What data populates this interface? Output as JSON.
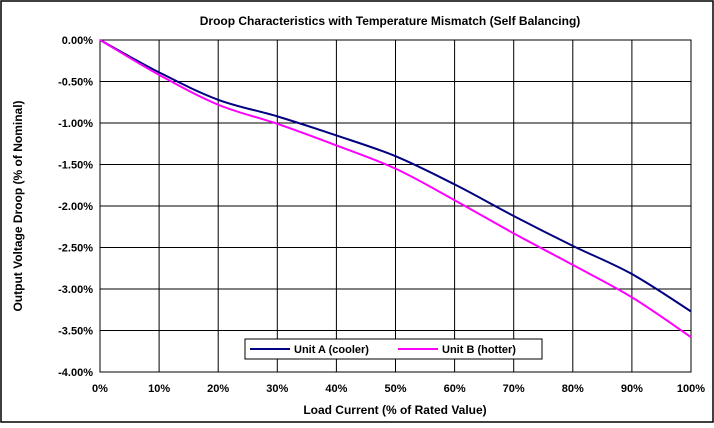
{
  "chart_data": {
    "type": "line",
    "title": "Droop Characteristics with Temperature Mismatch (Self Balancing)",
    "xlabel": "Load Current (% of Rated Value)",
    "ylabel": "Output  Voltage Droop (% of Nominal)",
    "xlim": [
      0,
      100
    ],
    "ylim": [
      -4.0,
      0.0
    ],
    "x_ticks": [
      "0%",
      "10%",
      "20%",
      "30%",
      "40%",
      "50%",
      "60%",
      "70%",
      "80%",
      "90%",
      "100%"
    ],
    "y_ticks": [
      "0.00%",
      "-0.50%",
      "-1.00%",
      "-1.50%",
      "-2.00%",
      "-2.50%",
      "-3.00%",
      "-3.50%",
      "-4.00%"
    ],
    "grid": true,
    "legend_position": "bottom-center",
    "x": [
      0,
      10,
      20,
      30,
      40,
      50,
      60,
      70,
      80,
      90,
      100
    ],
    "series": [
      {
        "name": "Unit A (cooler)",
        "color": "#000080",
        "values": [
          0.0,
          -0.39,
          -0.72,
          -0.92,
          -1.15,
          -1.4,
          -1.74,
          -2.12,
          -2.48,
          -2.82,
          -3.27
        ]
      },
      {
        "name": "Unit B (hotter)",
        "color": "#ff00ff",
        "values": [
          0.0,
          -0.42,
          -0.78,
          -1.01,
          -1.27,
          -1.55,
          -1.93,
          -2.33,
          -2.71,
          -3.1,
          -3.58
        ]
      }
    ]
  }
}
